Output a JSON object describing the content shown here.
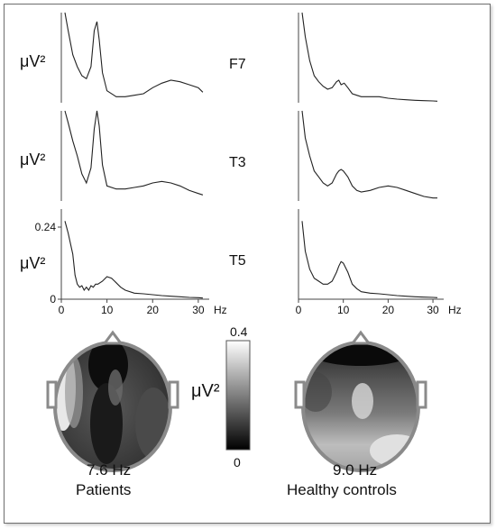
{
  "chart_data": [
    {
      "type": "line",
      "panel": "patients",
      "xlabel": "Hz",
      "xlim": [
        0,
        32
      ],
      "xticks": [
        0,
        10,
        20,
        30
      ],
      "ylabel": "μV²",
      "yticks": [
        0,
        0.24
      ],
      "channels": [
        {
          "name": "F7",
          "x": [
            0.8,
            1.5,
            2.5,
            3.5,
            4.5,
            5.5,
            6.5,
            7.2,
            7.8,
            8.3,
            9,
            10,
            12,
            14,
            16,
            18,
            20,
            22,
            24,
            26,
            28,
            30,
            31
          ],
          "y": [
            0.34,
            0.24,
            0.16,
            0.12,
            0.09,
            0.08,
            0.12,
            0.24,
            0.27,
            0.21,
            0.1,
            0.04,
            0.02,
            0.02,
            0.025,
            0.03,
            0.05,
            0.065,
            0.075,
            0.07,
            0.06,
            0.05,
            0.035
          ]
        },
        {
          "name": "T3",
          "x": [
            0.8,
            1.5,
            2.5,
            3.5,
            4.5,
            5.5,
            6.5,
            7.2,
            7.8,
            8.3,
            9,
            10,
            12,
            14,
            16,
            18,
            20,
            22,
            24,
            26,
            28,
            30,
            31
          ],
          "y": [
            0.35,
            0.26,
            0.2,
            0.15,
            0.09,
            0.06,
            0.11,
            0.24,
            0.3,
            0.25,
            0.12,
            0.05,
            0.04,
            0.04,
            0.045,
            0.05,
            0.06,
            0.065,
            0.06,
            0.05,
            0.035,
            0.025,
            0.02
          ]
        },
        {
          "name": "T5",
          "x": [
            0.8,
            1.5,
            2.5,
            3,
            3.5,
            4,
            4.5,
            5,
            5.5,
            6,
            6.5,
            7,
            7.5,
            8,
            9,
            10,
            11,
            12,
            13,
            14,
            16,
            18,
            20,
            22,
            24,
            26,
            28,
            30,
            31
          ],
          "y": [
            0.26,
            0.22,
            0.15,
            0.08,
            0.05,
            0.04,
            0.045,
            0.03,
            0.04,
            0.03,
            0.045,
            0.04,
            0.05,
            0.05,
            0.06,
            0.075,
            0.07,
            0.055,
            0.04,
            0.03,
            0.02,
            0.018,
            0.015,
            0.012,
            0.01,
            0.008,
            0.006,
            0.005,
            0.004
          ]
        }
      ],
      "topography": {
        "frequency": "7.6 Hz",
        "group": "Patients"
      }
    },
    {
      "type": "line",
      "panel": "healthy_controls",
      "xlabel": "Hz",
      "xlim": [
        0,
        32
      ],
      "xticks": [
        0,
        10,
        20,
        30
      ],
      "channels": [
        {
          "name": "F7",
          "x": [
            0.8,
            1.5,
            2.5,
            3.5,
            4.5,
            5.5,
            6.5,
            7.5,
            8.5,
            9,
            9.5,
            10.2,
            11,
            12,
            13,
            14,
            16,
            18,
            20,
            22,
            24,
            26,
            28,
            30,
            31
          ],
          "y": [
            0.34,
            0.22,
            0.14,
            0.09,
            0.07,
            0.055,
            0.045,
            0.05,
            0.07,
            0.075,
            0.06,
            0.065,
            0.05,
            0.03,
            0.025,
            0.02,
            0.02,
            0.02,
            0.015,
            0.012,
            0.01,
            0.008,
            0.007,
            0.006,
            0.005
          ]
        },
        {
          "name": "T3",
          "x": [
            0.8,
            1.5,
            2.5,
            3.5,
            4.5,
            5.5,
            6.5,
            7.5,
            8.5,
            9,
            9.5,
            10,
            11,
            12,
            13,
            14,
            16,
            18,
            20,
            22,
            24,
            26,
            28,
            30,
            31
          ],
          "y": [
            0.3,
            0.21,
            0.15,
            0.1,
            0.08,
            0.06,
            0.05,
            0.06,
            0.09,
            0.1,
            0.105,
            0.1,
            0.08,
            0.05,
            0.035,
            0.03,
            0.035,
            0.045,
            0.05,
            0.045,
            0.035,
            0.025,
            0.015,
            0.01,
            0.01
          ]
        },
        {
          "name": "T5",
          "x": [
            0.8,
            1.5,
            2.5,
            3.5,
            4.5,
            5.5,
            6.5,
            7.5,
            8.5,
            9,
            9.5,
            10,
            11,
            12,
            13,
            14,
            16,
            18,
            20,
            22,
            24,
            26,
            28,
            30,
            31
          ],
          "y": [
            0.26,
            0.16,
            0.1,
            0.07,
            0.06,
            0.05,
            0.05,
            0.06,
            0.09,
            0.11,
            0.125,
            0.12,
            0.09,
            0.05,
            0.035,
            0.025,
            0.02,
            0.018,
            0.015,
            0.012,
            0.01,
            0.008,
            0.007,
            0.006,
            0.005
          ]
        }
      ],
      "topography": {
        "frequency": "9.0 Hz",
        "group": "Healthy controls"
      }
    },
    {
      "type": "heatmap",
      "colorbar": {
        "label": "μV²",
        "range": [
          0,
          0.4
        ],
        "ticks": [
          "0.4",
          "0"
        ],
        "colors": [
          "#000000",
          "#ffffff"
        ]
      }
    }
  ]
}
